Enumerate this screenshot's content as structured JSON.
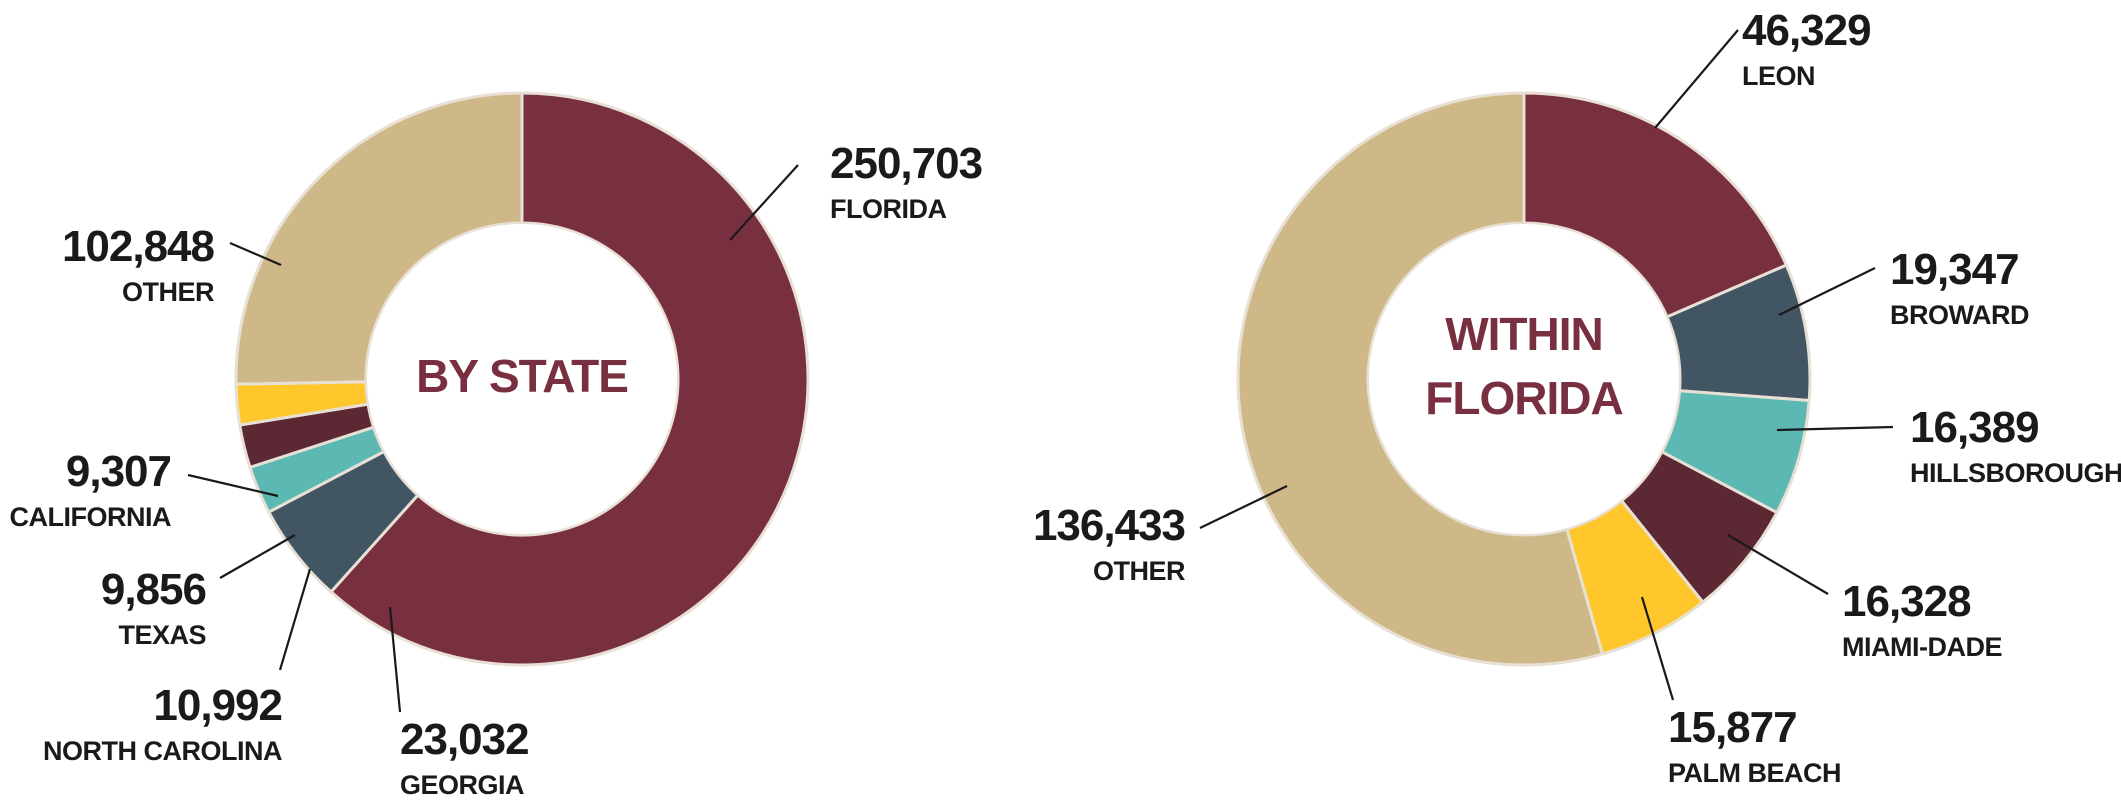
{
  "colors": {
    "garnet": "#782f40",
    "gold": "#ceb888",
    "slate": "#425563",
    "teal": "#5cb8b2",
    "maroon": "#5b2834",
    "yellow": "#ffc72c",
    "text": "#1a1a1a"
  },
  "chart_data": [
    {
      "type": "pie",
      "donut": true,
      "title": "BY STATE",
      "slices": [
        {
          "label": "FLORIDA",
          "value": 250703,
          "display": "250,703",
          "color": "#782f40"
        },
        {
          "label": "GEORGIA",
          "value": 23032,
          "display": "23,032",
          "color": "#425563"
        },
        {
          "label": "NORTH CAROLINA",
          "value": 10992,
          "display": "10,992",
          "color": "#5cb8b2"
        },
        {
          "label": "TEXAS",
          "value": 9856,
          "display": "9,856",
          "color": "#5b2834"
        },
        {
          "label": "CALIFORNIA",
          "value": 9307,
          "display": "9,307",
          "color": "#ffc72c"
        },
        {
          "label": "OTHER",
          "value": 102848,
          "display": "102,848",
          "color": "#ceb888"
        }
      ]
    },
    {
      "type": "pie",
      "donut": true,
      "title": "WITHIN FLORIDA",
      "title_lines": [
        "WITHIN",
        "FLORIDA"
      ],
      "slices": [
        {
          "label": "LEON",
          "value": 46329,
          "display": "46,329",
          "color": "#782f40"
        },
        {
          "label": "BROWARD",
          "value": 19347,
          "display": "19,347",
          "color": "#425563"
        },
        {
          "label": "HILLSBOROUGH",
          "value": 16389,
          "display": "16,389",
          "color": "#5cb8b2"
        },
        {
          "label": "MIAMI-DADE",
          "value": 16328,
          "display": "16,328",
          "color": "#5b2834"
        },
        {
          "label": "PALM BEACH",
          "value": 15877,
          "display": "15,877",
          "color": "#ffc72c"
        },
        {
          "label": "OTHER",
          "value": 136433,
          "display": "136,433",
          "color": "#ceb888"
        }
      ]
    }
  ]
}
